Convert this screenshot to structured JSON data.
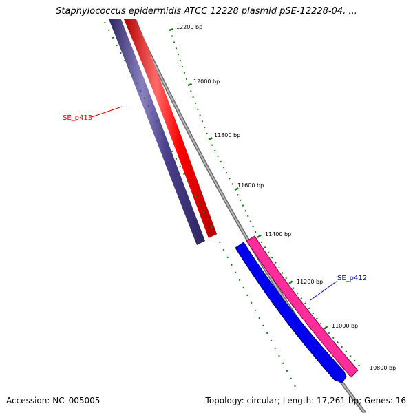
{
  "title": "Staphylococcus epidermidis ATCC 12228 plasmid pSE-12228-04, ...",
  "accession": "Accession: NC_005005",
  "summary": "Topology: circular; Length: 17,261 bp; Genes: 16",
  "colors": {
    "backbone": "#808080",
    "tick": "#1a7a1a",
    "gene_red": "#ff0000",
    "gene_purple": "#4a3f8c",
    "gene_blue": "#0000ee",
    "gene_pink": "#ff2d9b",
    "label_red": "#dd0000",
    "label_blue": "#0000cc"
  },
  "ticks": [
    {
      "label": "12200 bp"
    },
    {
      "label": "12000 bp"
    },
    {
      "label": "11800 bp"
    },
    {
      "label": "11600 bp"
    },
    {
      "label": "11400 bp"
    },
    {
      "label": "11200 bp"
    },
    {
      "label": "11000 bp"
    },
    {
      "label": "10800 bp"
    }
  ],
  "genes": [
    {
      "name": "SE_p413",
      "color": "gene_purple",
      "label_color": "label_red"
    },
    {
      "name": "SE_p412",
      "color": "gene_blue",
      "label_color": "label_blue"
    }
  ]
}
